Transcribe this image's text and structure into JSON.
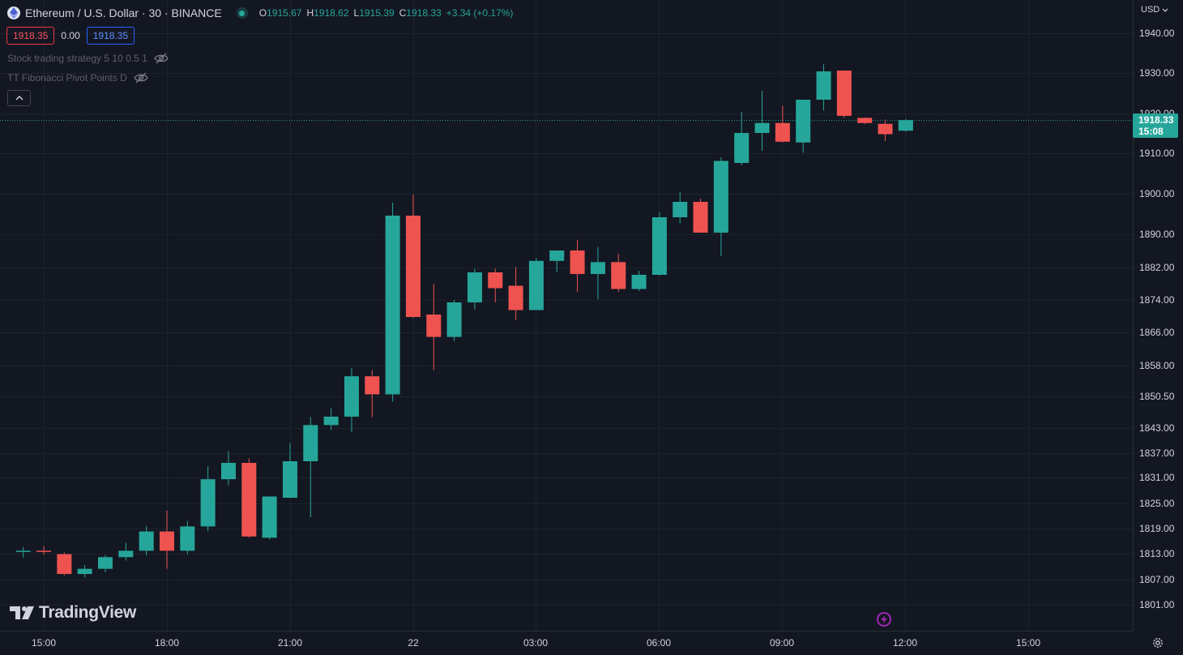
{
  "header": {
    "symbol_title": "Ethereum / U.S. Dollar · 30 · BINANCE",
    "ohlc": [
      {
        "key": "O",
        "value": "1915.67"
      },
      {
        "key": "H",
        "value": "1918.62"
      },
      {
        "key": "L",
        "value": "1915.39"
      },
      {
        "key": "C",
        "value": "1918.33"
      }
    ],
    "change": "+3.34 (+0.17%)"
  },
  "prices": {
    "sell": "1918.35",
    "spread": "0.00",
    "buy": "1918.35"
  },
  "indicators": [
    {
      "label": "Stock trading strategy 5 10 0.5 1"
    },
    {
      "label": "TT Fibonacci Pivot Points D"
    }
  ],
  "axis": {
    "currency": "USD",
    "last_price": "1918.33",
    "countdown": "15:08"
  },
  "brand": "TradingView",
  "colors": {
    "up": "#26a69a",
    "down": "#ef5350",
    "background": "#131722",
    "grid": "#1e222d"
  },
  "icons": [
    "ethereum-icon",
    "market-open-dot-icon",
    "eye-off-icon",
    "chevron-up-icon",
    "chevron-down-icon",
    "tradingview-logo-icon",
    "lightning-icon",
    "settings-gear-icon"
  ],
  "chart_data": {
    "type": "candlestick",
    "yticks": [
      "1940.00",
      "1930.00",
      "1920.00",
      "1910.00",
      "1900.00",
      "1890.00",
      "1882.00",
      "1874.00",
      "1866.00",
      "1858.00",
      "1850.50",
      "1843.00",
      "1837.00",
      "1831.00",
      "1825.00",
      "1819.00",
      "1813.00",
      "1807.00",
      "1801.00"
    ],
    "xticks": [
      "15:00",
      "18:00",
      "21:00",
      "22",
      "03:00",
      "06:00",
      "09:00",
      "12:00",
      "15:00"
    ],
    "candles": [
      {
        "t": "21 14:30",
        "o": 1813.7,
        "h": 1814.6,
        "l": 1812.1,
        "c": 1813.7
      },
      {
        "t": "21 15:00",
        "o": 1813.7,
        "h": 1814.8,
        "l": 1812.8,
        "c": 1813.5
      },
      {
        "t": "21 15:30",
        "o": 1812.9,
        "h": 1813.3,
        "l": 1808.0,
        "c": 1808.3
      },
      {
        "t": "21 16:00",
        "o": 1808.3,
        "h": 1810.4,
        "l": 1807.5,
        "c": 1809.5
      },
      {
        "t": "21 16:30",
        "o": 1809.5,
        "h": 1812.7,
        "l": 1808.7,
        "c": 1812.2
      },
      {
        "t": "21 17:00",
        "o": 1812.2,
        "h": 1815.6,
        "l": 1811.4,
        "c": 1813.7
      },
      {
        "t": "21 17:30",
        "o": 1813.7,
        "h": 1819.6,
        "l": 1812.6,
        "c": 1818.3
      },
      {
        "t": "21 18:00",
        "o": 1818.3,
        "h": 1823.3,
        "l": 1809.5,
        "c": 1813.7
      },
      {
        "t": "21 18:30",
        "o": 1813.7,
        "h": 1820.8,
        "l": 1812.9,
        "c": 1819.5
      },
      {
        "t": "21 19:00",
        "o": 1819.5,
        "h": 1833.8,
        "l": 1818.4,
        "c": 1830.6
      },
      {
        "t": "21 19:30",
        "o": 1830.6,
        "h": 1837.5,
        "l": 1829.2,
        "c": 1834.6
      },
      {
        "t": "21 20:00",
        "o": 1834.6,
        "h": 1835.7,
        "l": 1816.8,
        "c": 1817.1
      },
      {
        "t": "21 20:30",
        "o": 1816.8,
        "h": 1826.6,
        "l": 1816.4,
        "c": 1826.6
      },
      {
        "t": "21 21:00",
        "o": 1826.3,
        "h": 1839.4,
        "l": 1826.3,
        "c": 1835.0
      },
      {
        "t": "21 21:30",
        "o": 1835.0,
        "h": 1845.6,
        "l": 1821.7,
        "c": 1843.7
      },
      {
        "t": "21 22:00",
        "o": 1843.7,
        "h": 1847.7,
        "l": 1842.5,
        "c": 1845.7
      },
      {
        "t": "21 22:30",
        "o": 1845.7,
        "h": 1857.4,
        "l": 1842.0,
        "c": 1855.4
      },
      {
        "t": "21 23:00",
        "o": 1855.4,
        "h": 1856.9,
        "l": 1845.6,
        "c": 1851.0
      },
      {
        "t": "21 23:30",
        "o": 1851.0,
        "h": 1897.8,
        "l": 1849.3,
        "c": 1894.6
      },
      {
        "t": "22 00:00",
        "o": 1894.6,
        "h": 1899.8,
        "l": 1869.6,
        "c": 1869.8
      },
      {
        "t": "22 00:30",
        "o": 1870.4,
        "h": 1877.9,
        "l": 1856.9,
        "c": 1864.9
      },
      {
        "t": "22 01:00",
        "o": 1864.9,
        "h": 1874.0,
        "l": 1863.9,
        "c": 1873.4
      },
      {
        "t": "22 01:30",
        "o": 1873.4,
        "h": 1881.7,
        "l": 1871.7,
        "c": 1880.8
      },
      {
        "t": "22 02:00",
        "o": 1880.8,
        "h": 1881.7,
        "l": 1873.4,
        "c": 1876.9
      },
      {
        "t": "22 02:30",
        "o": 1877.5,
        "h": 1882.1,
        "l": 1869.1,
        "c": 1871.5
      },
      {
        "t": "22 03:00",
        "o": 1871.5,
        "h": 1884.3,
        "l": 1871.5,
        "c": 1883.6
      },
      {
        "t": "22 03:30",
        "o": 1883.6,
        "h": 1886.1,
        "l": 1880.8,
        "c": 1886.1
      },
      {
        "t": "22 04:00",
        "o": 1886.1,
        "h": 1888.6,
        "l": 1876.0,
        "c": 1880.4
      },
      {
        "t": "22 04:30",
        "o": 1880.4,
        "h": 1886.9,
        "l": 1874.1,
        "c": 1883.3
      },
      {
        "t": "22 05:00",
        "o": 1883.3,
        "h": 1885.3,
        "l": 1876.0,
        "c": 1876.7
      },
      {
        "t": "22 05:30",
        "o": 1876.7,
        "h": 1881.2,
        "l": 1876.2,
        "c": 1880.2
      },
      {
        "t": "22 06:00",
        "o": 1880.2,
        "h": 1895.5,
        "l": 1880.0,
        "c": 1894.2
      },
      {
        "t": "22 06:30",
        "o": 1894.2,
        "h": 1900.5,
        "l": 1892.7,
        "c": 1898.0
      },
      {
        "t": "22 07:00",
        "o": 1898.0,
        "h": 1898.8,
        "l": 1890.4,
        "c": 1890.4
      },
      {
        "t": "22 07:30",
        "o": 1890.4,
        "h": 1909.0,
        "l": 1884.8,
        "c": 1908.1
      },
      {
        "t": "22 08:00",
        "o": 1907.6,
        "h": 1920.4,
        "l": 1907.0,
        "c": 1915.1
      },
      {
        "t": "22 08:30",
        "o": 1915.1,
        "h": 1925.6,
        "l": 1910.6,
        "c": 1917.6
      },
      {
        "t": "22 09:00",
        "o": 1917.6,
        "h": 1921.9,
        "l": 1912.7,
        "c": 1912.9
      },
      {
        "t": "22 09:30",
        "o": 1912.7,
        "h": 1923.4,
        "l": 1910.1,
        "c": 1923.4
      },
      {
        "t": "22 10:00",
        "o": 1923.4,
        "h": 1932.2,
        "l": 1920.7,
        "c": 1930.4
      },
      {
        "t": "22 10:30",
        "o": 1930.6,
        "h": 1930.6,
        "l": 1918.9,
        "c": 1919.4
      },
      {
        "t": "22 11:00",
        "o": 1918.9,
        "h": 1919.0,
        "l": 1917.3,
        "c": 1917.6
      },
      {
        "t": "22 11:30",
        "o": 1917.4,
        "h": 1918.5,
        "l": 1913.1,
        "c": 1914.8
      },
      {
        "t": "22 12:00",
        "o": 1915.67,
        "h": 1918.62,
        "l": 1915.39,
        "c": 1918.33
      }
    ]
  }
}
